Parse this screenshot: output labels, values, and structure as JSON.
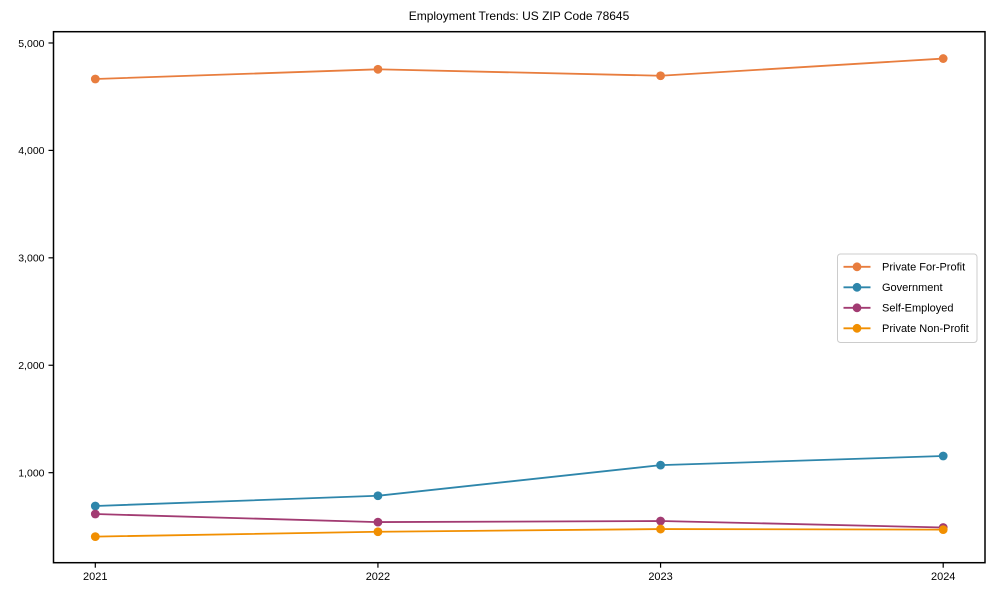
{
  "chart_data": {
    "type": "line",
    "title": "Employment Trends: US ZIP Code 78645",
    "x": [
      2021,
      2022,
      2023,
      2024
    ],
    "xtick_labels": [
      "2021",
      "2022",
      "2023",
      "2024"
    ],
    "series": [
      {
        "name": "Private For-Profit",
        "color": "#e87d3e",
        "values": [
          4665,
          4755,
          4695,
          4855
        ]
      },
      {
        "name": "Government",
        "color": "#2e86ab",
        "values": [
          690,
          785,
          1070,
          1155
        ]
      },
      {
        "name": "Self-Employed",
        "color": "#a23b72",
        "values": [
          615,
          540,
          550,
          490
        ]
      },
      {
        "name": "Private Non-Profit",
        "color": "#f18f01",
        "values": [
          405,
          450,
          475,
          470
        ]
      }
    ],
    "yticks": [
      1000,
      2000,
      3000,
      4000,
      5000
    ],
    "ytick_labels": [
      "1,000",
      "2,000",
      "3,000",
      "4,000",
      "5,000"
    ],
    "ylim": [
      162,
      5105
    ],
    "grid": false,
    "legend_position": "center-right",
    "background_color": "#ffffff",
    "axis_color": "#000000",
    "legend_border_color": "#cccccc"
  }
}
